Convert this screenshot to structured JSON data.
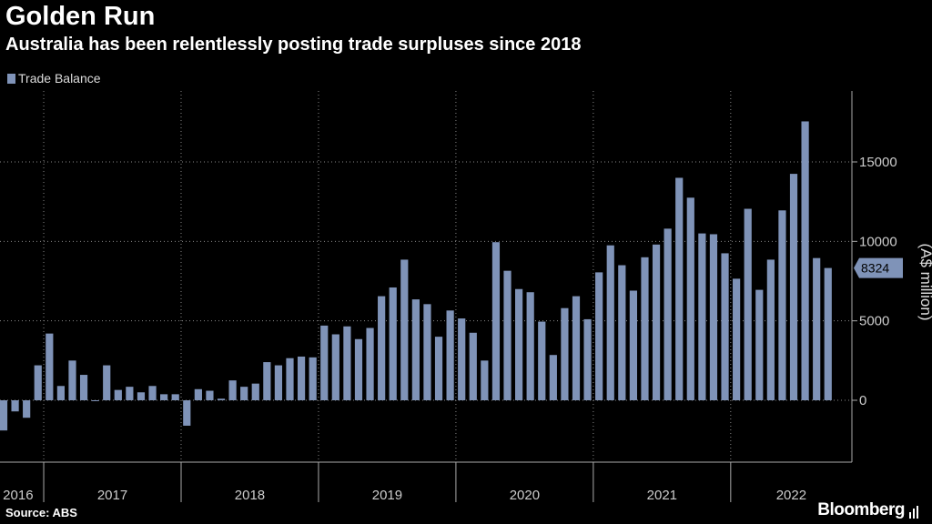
{
  "title": "Golden Run",
  "subtitle": "Australia has been relentlessly posting trade surpluses since 2018",
  "legend": {
    "label": "Trade Balance"
  },
  "footer": {
    "source": "Source: ABS",
    "brand": "Bloomberg",
    "brand_icon": "bloomberg-bars-icon"
  },
  "colors": {
    "background": "#000000",
    "bar": "#7f93b8",
    "grid": "#888888",
    "text": "#cccccc"
  },
  "chart_data": {
    "type": "bar",
    "title": "Golden Run",
    "subtitle": "Australia has been relentlessly posting trade surpluses since 2018",
    "ylabel": "(A$ million)",
    "ylim": [
      -3500,
      19000
    ],
    "yticks": [
      0,
      5000,
      10000,
      15000
    ],
    "legend": "top-left",
    "grid": true,
    "x_labels": [
      "2016",
      "2017",
      "2018",
      "2019",
      "2020",
      "2021",
      "2022"
    ],
    "start": "2016-09",
    "last_value_label": "8324",
    "series": [
      {
        "name": "Trade Balance",
        "values": [
          -1900,
          -700,
          -1100,
          2200,
          4200,
          900,
          2500,
          1600,
          -50,
          2200,
          650,
          850,
          500,
          900,
          380,
          380,
          -1600,
          700,
          600,
          100,
          1250,
          850,
          1050,
          2400,
          2200,
          2650,
          2750,
          2700,
          4700,
          4150,
          4650,
          3850,
          4550,
          6550,
          7100,
          8850,
          6350,
          6050,
          4000,
          5650,
          5150,
          4250,
          2500,
          9950,
          8150,
          7000,
          6800,
          4950,
          2850,
          5800,
          6550,
          5100,
          8050,
          9750,
          8500,
          6900,
          9000,
          9800,
          10800,
          14000,
          12750,
          10500,
          10450,
          9250,
          7650,
          12050,
          6950,
          8850,
          11950,
          14250,
          17550,
          8950,
          8324
        ]
      }
    ]
  }
}
